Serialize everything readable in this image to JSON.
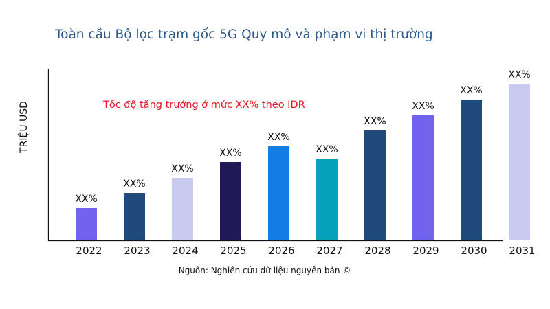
{
  "title": "Toàn cầu Bộ lọc trạm gốc 5G Quy mô và phạm vi thị trường",
  "source": "Nguồn: Nghiên cứu dữ liệu nguyên bản ©",
  "chart_data": {
    "type": "bar",
    "title": "Toàn cầu Bộ lọc trạm gốc 5G Quy mô và phạm vi thị trường",
    "xlabel": "",
    "ylabel": "TRIỆU USD",
    "annotation": "Tốc độ tăng trưởng ở mức XX% theo IDR",
    "categories": [
      "2022",
      "2023",
      "2024",
      "2025",
      "2026",
      "2027",
      "2028",
      "2029",
      "2030",
      "2031"
    ],
    "values": [
      47,
      69,
      91,
      114,
      137,
      119,
      160,
      182,
      205,
      228
    ],
    "data_labels": [
      "XX%",
      "XX%",
      "XX%",
      "XX%",
      "XX%",
      "XX%",
      "XX%",
      "XX%",
      "XX%",
      "XX%"
    ],
    "colors": [
      "#6F63F0",
      "#1F4A7A",
      "#C9CAEF",
      "#1F1A57",
      "#137DE6",
      "#05A0B9",
      "#1F4A7A",
      "#6F63F0",
      "#1F4A7A",
      "#C9CAEF"
    ],
    "ylim": [
      0,
      250
    ],
    "grid": false,
    "legend": "none"
  }
}
